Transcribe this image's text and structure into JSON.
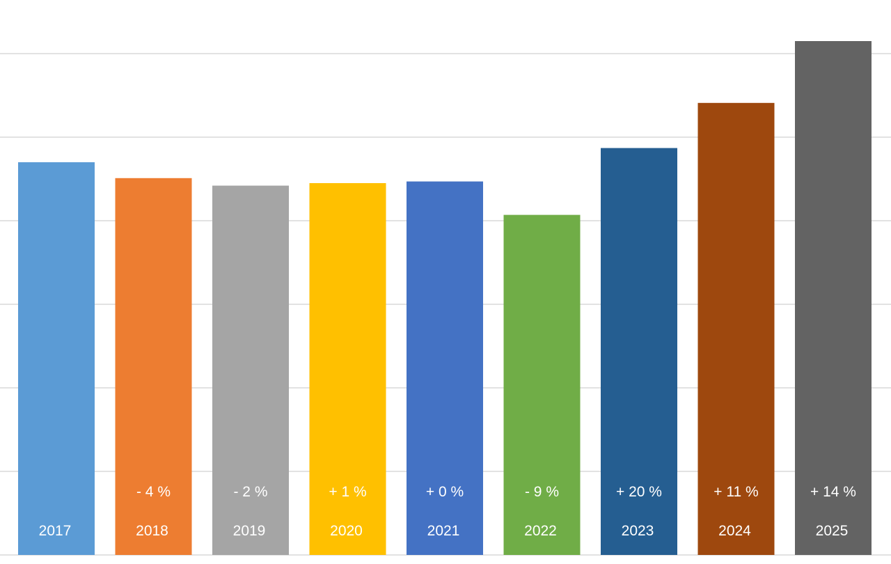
{
  "chart_data": {
    "type": "bar",
    "categories": [
      "2017",
      "2018",
      "2019",
      "2020",
      "2021",
      "2022",
      "2023",
      "2024",
      "2025"
    ],
    "values": [
      4.7,
      4.51,
      4.42,
      4.45,
      4.47,
      4.07,
      4.87,
      5.41,
      6.15
    ],
    "change_labels": [
      "",
      "- 4 %",
      "- 2 %",
      "+ 1 %",
      "+ 0 %",
      "- 9 %",
      "+ 20 %",
      "+ 11 %",
      "+ 14 %"
    ],
    "colors": [
      "#5B9BD5",
      "#ED7D31",
      "#A5A5A5",
      "#FFC000",
      "#4472C4",
      "#70AD47",
      "#255E91",
      "#9E480E",
      "#636363"
    ],
    "ylim": [
      0,
      6.6
    ],
    "gridlines": [
      1,
      2,
      3,
      4,
      5,
      6
    ],
    "grid": true,
    "legend": "none",
    "title": "",
    "xlabel": "",
    "ylabel": ""
  }
}
